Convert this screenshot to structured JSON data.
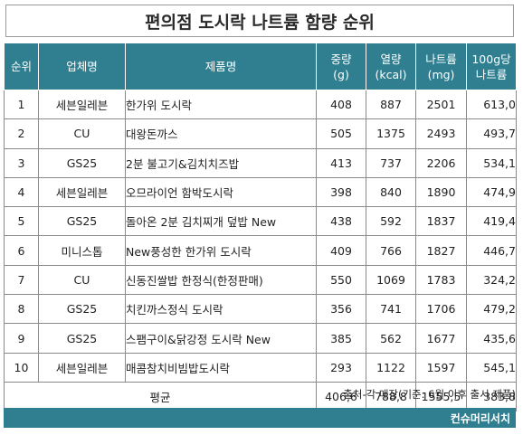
{
  "title": "편의점 도시락 나트륨 함량 순위",
  "headers": {
    "rank": "순위",
    "company": "업체명",
    "product": "제품명",
    "weight_l1": "중량",
    "weight_l2": "(g)",
    "energy_l1": "열량",
    "energy_l2": "(kcal)",
    "sodium_l1": "나트륨",
    "sodium_l2": "(mg)",
    "per100_l1": "100g당",
    "per100_l2": "나트륨"
  },
  "rows": [
    {
      "rank": "1",
      "company": "세븐일레븐",
      "product": "한가위 도시락",
      "weight": "408",
      "kcal": "887",
      "sodium": "2501",
      "per100": "613,0"
    },
    {
      "rank": "2",
      "company": "CU",
      "product": "대왕돈까스",
      "weight": "505",
      "kcal": "1375",
      "sodium": "2493",
      "per100": "493,7"
    },
    {
      "rank": "3",
      "company": "GS25",
      "product": "2분 불고기&김치치즈밥",
      "weight": "413",
      "kcal": "737",
      "sodium": "2206",
      "per100": "534,1"
    },
    {
      "rank": "4",
      "company": "세븐일레븐",
      "product": "오므라이언 함박도시락",
      "weight": "398",
      "kcal": "840",
      "sodium": "1890",
      "per100": "474,9"
    },
    {
      "rank": "5",
      "company": "GS25",
      "product": "돌아온 2분 김치찌개 덮밥 New",
      "weight": "438",
      "kcal": "592",
      "sodium": "1837",
      "per100": "419,4"
    },
    {
      "rank": "6",
      "company": "미니스톱",
      "product": "New풍성한 한가위 도시락",
      "weight": "409",
      "kcal": "766",
      "sodium": "1827",
      "per100": "446,7"
    },
    {
      "rank": "7",
      "company": "CU",
      "product": "신동진쌀밥 한정식(한정판매)",
      "weight": "550",
      "kcal": "1069",
      "sodium": "1783",
      "per100": "324,2"
    },
    {
      "rank": "8",
      "company": "GS25",
      "product": "치킨까스정식 도시락",
      "weight": "356",
      "kcal": "741",
      "sodium": "1706",
      "per100": "479,2"
    },
    {
      "rank": "9",
      "company": "GS25",
      "product": "스팸구이&닭강정 도시락 New",
      "weight": "385",
      "kcal": "562",
      "sodium": "1677",
      "per100": "435,6"
    },
    {
      "rank": "10",
      "company": "세븐일레븐",
      "product": "매콤참치비빔밥도시락",
      "weight": "293",
      "kcal": "1122",
      "sodium": "1597",
      "per100": "545,1"
    }
  ],
  "average": {
    "label": "평균",
    "weight": "406,6",
    "kcal": "788,8",
    "sodium": "1555,5",
    "per100": "383,8"
  },
  "source": "출처-각 매장(기준: 6월 이후 출시 제품)",
  "credit": "컨슈머리서치",
  "colors": {
    "header_bg": "#2f7f90",
    "header_text": "#ffffff",
    "border": "#8a8a8a"
  }
}
